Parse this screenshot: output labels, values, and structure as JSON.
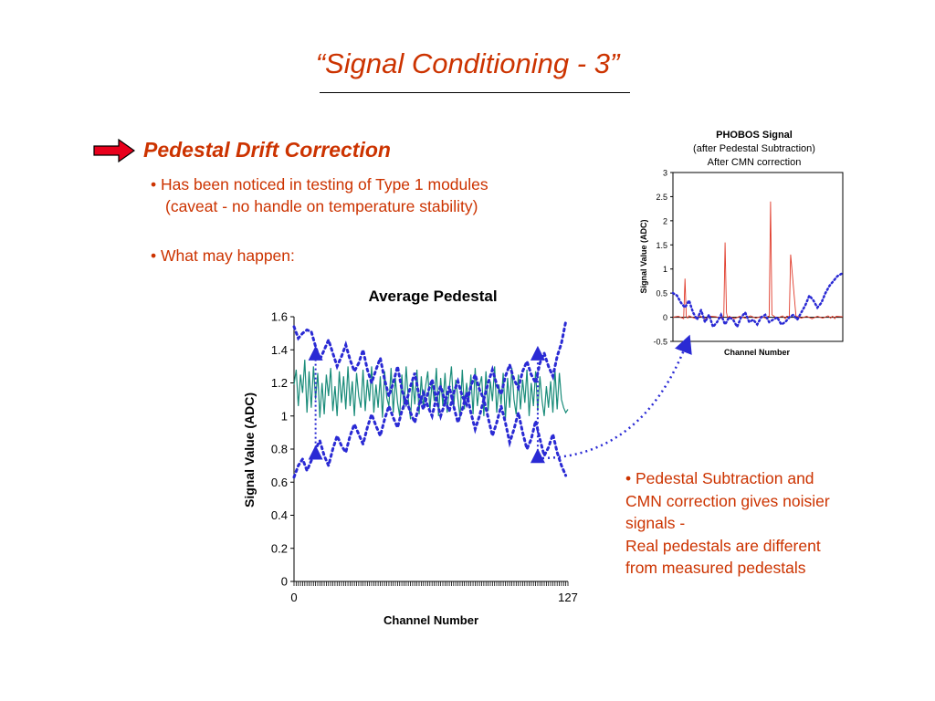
{
  "slide": {
    "title": "“Signal Conditioning - 3”",
    "heading": "Pedestal Drift Correction",
    "bullet1_line1": "• Has been noticed in testing of Type 1 modules",
    "bullet1_line2": "(caveat - no handle on temperature stability)",
    "bullet2": "• What may happen:",
    "note_line1": "• Pedestal Subtraction and",
    "note_line2": "CMN correction gives noisier",
    "note_line3": "signals -",
    "note_line4": "Real pedestals are different",
    "note_line5": "from measured pedestals",
    "colors": {
      "accent": "#cc3300",
      "arrow_fill": "#e8001c",
      "arrow_link": "#2a2ad4"
    },
    "icons": {
      "pointer": "red-arrow-icon"
    }
  },
  "chart_data": [
    {
      "type": "line",
      "title": "Average Pedestal",
      "xlabel": "Channel Number",
      "ylabel": "Signal Value (ADC)",
      "xlim": [
        0,
        127
      ],
      "ylim": [
        0,
        1.6
      ],
      "yticks": [
        "0",
        "0.2",
        "0.4",
        "0.6",
        "0.8",
        "1",
        "1.2",
        "1.4",
        "1.6"
      ],
      "xticks": [
        "0",
        "127"
      ],
      "grid": false,
      "legend": "none",
      "series": [
        {
          "style": "solid",
          "color": "#1a8c7a",
          "x": [
            0,
            1,
            2,
            3,
            4,
            5,
            6,
            7,
            8,
            9,
            10,
            11,
            12,
            13,
            14,
            15,
            16,
            17,
            18,
            19,
            20,
            21,
            22,
            23,
            24,
            25,
            26,
            27,
            28,
            29,
            30,
            31,
            32,
            33,
            34,
            35,
            36,
            37,
            38,
            39,
            40,
            41,
            42,
            43,
            44,
            45,
            46,
            47,
            48,
            49,
            50,
            51,
            52,
            53,
            54,
            55,
            56,
            57,
            58,
            59,
            60,
            61,
            62,
            63,
            64,
            65,
            66,
            67,
            68,
            69,
            70,
            71,
            72,
            73,
            74,
            75,
            76,
            77,
            78,
            79,
            80,
            81,
            82,
            83,
            84,
            85,
            86,
            87,
            88,
            89,
            90,
            91,
            92,
            93,
            94,
            95,
            96,
            97,
            98,
            99,
            100,
            101,
            102,
            103,
            104,
            105,
            106,
            107,
            108,
            109,
            110,
            111,
            112,
            113,
            114,
            115,
            116,
            117,
            118,
            119,
            120,
            121,
            122,
            123,
            124,
            125,
            126,
            127
          ],
          "y": [
            1.19,
            1.28,
            1.06,
            1.25,
            1.14,
            1.34,
            1.02,
            1.27,
            1.05,
            1.3,
            1.1,
            1.26,
            0.99,
            1.2,
            1.01,
            1.25,
            1.12,
            1.29,
            1.03,
            1.18,
            1.0,
            1.27,
            1.08,
            1.24,
            1.04,
            1.3,
            1.06,
            1.21,
            1.0,
            1.26,
            1.12,
            1.05,
            1.28,
            1.03,
            1.22,
            1.09,
            1.3,
            1.02,
            1.19,
            1.05,
            1.24,
            0.99,
            1.27,
            1.11,
            1.06,
            1.29,
            1.02,
            1.23,
            1.08,
            1.0,
            1.25,
            1.04,
            1.3,
            1.1,
            0.98,
            1.22,
            1.07,
            1.28,
            1.01,
            1.24,
            1.05,
            1.18,
            1.27,
            1.03,
            1.21,
            1.09,
            1.29,
            1.0,
            1.23,
            1.06,
            1.26,
            1.02,
            1.17,
            1.3,
            1.05,
            1.22,
            1.1,
            0.99,
            1.28,
            1.04,
            1.2,
            1.08,
            1.25,
            1.01,
            1.29,
            1.06,
            1.18,
            1.24,
            1.0,
            1.27,
            1.03,
            1.21,
            1.09,
            1.3,
            1.02,
            1.19,
            1.07,
            1.26,
            0.98,
            1.23,
            1.05,
            1.29,
            1.1,
            1.01,
            1.25,
            1.04,
            1.22,
            1.08,
            1.28,
            1.0,
            1.2,
            1.06,
            1.27,
            1.03,
            1.24,
            1.09,
            1.0,
            1.18,
            1.05,
            1.21,
            1.02,
            1.28,
            1.04,
            1.26,
            1.1,
            1.05,
            1.02,
            1.04
          ]
        },
        {
          "style": "dotted",
          "color": "#2a2ad4",
          "x": [
            0,
            2,
            4,
            6,
            8,
            10,
            12,
            14,
            16,
            18,
            20,
            22,
            24,
            26,
            28,
            30,
            32,
            34,
            36,
            38,
            40,
            42,
            44,
            46,
            48,
            50,
            52,
            54,
            56,
            58,
            60,
            62,
            64,
            66,
            68,
            70,
            72,
            74,
            76,
            78,
            80,
            82,
            84,
            86,
            88,
            90,
            92,
            94,
            96,
            98,
            100,
            102,
            104,
            106,
            108,
            110,
            112,
            114,
            116,
            118,
            120,
            122,
            124,
            126
          ],
          "y": [
            1.54,
            1.47,
            1.5,
            1.52,
            1.51,
            1.42,
            1.34,
            1.4,
            1.46,
            1.38,
            1.3,
            1.36,
            1.43,
            1.34,
            1.27,
            1.32,
            1.4,
            1.28,
            1.2,
            1.28,
            1.35,
            1.22,
            1.12,
            1.2,
            1.3,
            1.16,
            1.08,
            1.18,
            1.26,
            1.12,
            1.04,
            1.14,
            1.22,
            1.1,
            1.0,
            1.08,
            1.18,
            1.06,
            0.96,
            1.04,
            1.14,
            1.02,
            0.92,
            1.0,
            1.1,
            0.99,
            0.88,
            0.96,
            1.06,
            0.96,
            0.84,
            0.92,
            1.02,
            0.9,
            0.8,
            0.86,
            0.97,
            0.86,
            0.76,
            0.81,
            0.89,
            0.78,
            0.7,
            0.64
          ]
        },
        {
          "style": "dotted",
          "color": "#2a2ad4",
          "x": [
            0,
            2,
            4,
            6,
            8,
            10,
            12,
            14,
            16,
            18,
            20,
            22,
            24,
            26,
            28,
            30,
            32,
            34,
            36,
            38,
            40,
            42,
            44,
            46,
            48,
            50,
            52,
            54,
            56,
            58,
            60,
            62,
            64,
            66,
            68,
            70,
            72,
            74,
            76,
            78,
            80,
            82,
            84,
            86,
            88,
            90,
            92,
            94,
            96,
            98,
            100,
            102,
            104,
            106,
            108,
            110,
            112,
            114,
            116,
            118,
            120,
            122,
            124,
            126
          ],
          "y": [
            0.63,
            0.7,
            0.74,
            0.67,
            0.73,
            0.8,
            0.85,
            0.76,
            0.7,
            0.8,
            0.88,
            0.82,
            0.78,
            0.88,
            0.95,
            0.89,
            0.83,
            0.93,
            1.01,
            0.94,
            0.88,
            0.98,
            1.06,
            0.99,
            0.93,
            1.03,
            1.1,
            1.02,
            0.96,
            1.07,
            1.14,
            1.06,
            1.0,
            1.11,
            1.18,
            1.09,
            1.03,
            1.14,
            1.21,
            1.12,
            1.07,
            1.18,
            1.25,
            1.16,
            1.1,
            1.2,
            1.28,
            1.19,
            1.13,
            1.24,
            1.31,
            1.22,
            1.17,
            1.27,
            1.33,
            1.25,
            1.2,
            1.32,
            1.38,
            1.3,
            1.24,
            1.36,
            1.44,
            1.57
          ]
        }
      ],
      "annotations": [
        {
          "type": "double-arrow",
          "x": 10,
          "y_from": 0.78,
          "y_to": 1.38
        },
        {
          "type": "double-arrow",
          "x": 113,
          "y_from": 0.76,
          "y_to": 1.38
        }
      ]
    },
    {
      "type": "line",
      "title": "PHOBOS Signal",
      "subtitle": [
        "(after Pedestal Subtraction)",
        "After CMN correction"
      ],
      "xlabel": "Channel Number",
      "ylabel": "Signal Value (ADC)",
      "xlim": [
        0,
        127
      ],
      "ylim": [
        -0.5,
        3
      ],
      "yticks": [
        "-0.5",
        "0",
        "0.5",
        "1",
        "1.5",
        "2",
        "2.5",
        "3"
      ],
      "grid": false,
      "legend": "none",
      "series": [
        {
          "style": "solid",
          "color": "#e03a2a",
          "x": [
            0,
            4,
            8,
            9,
            10,
            11,
            12,
            16,
            20,
            24,
            28,
            32,
            36,
            38,
            39,
            40,
            41,
            42,
            46,
            50,
            54,
            58,
            62,
            66,
            70,
            71,
            72,
            73,
            74,
            78,
            82,
            84,
            85,
            86,
            87,
            88,
            92,
            96,
            100,
            104,
            108,
            112,
            116,
            118,
            119,
            120,
            121,
            122,
            126,
            127
          ],
          "y": [
            0,
            0.02,
            -0.03,
            0.8,
            0.02,
            -0.02,
            0.03,
            -0.02,
            0.03,
            -0.03,
            0.02,
            0.01,
            -0.02,
            0.03,
            1.55,
            0.1,
            -0.02,
            0.02,
            -0.03,
            0.02,
            -0.02,
            0.03,
            -0.02,
            0.02,
            -0.03,
            0.02,
            0.02,
            2.4,
            0.05,
            -0.02,
            0.03,
            -0.03,
            0.02,
            0.02,
            -0.02,
            1.3,
            0.03,
            -0.02,
            0.02,
            -0.03,
            0.02,
            -0.02,
            0.03,
            -0.02,
            0.02,
            0.01,
            -0.03,
            0.02,
            0.01,
            0.01
          ]
        },
        {
          "style": "dotted",
          "color": "#2a2ad4",
          "x": [
            0,
            3,
            6,
            9,
            12,
            15,
            18,
            21,
            24,
            27,
            30,
            33,
            36,
            39,
            42,
            45,
            48,
            51,
            54,
            57,
            60,
            63,
            66,
            69,
            72,
            75,
            78,
            81,
            84,
            87,
            90,
            93,
            96,
            99,
            102,
            105,
            108,
            111,
            114,
            117,
            120,
            123,
            126
          ],
          "y": [
            0.5,
            0.45,
            0.3,
            0.2,
            0.35,
            0.1,
            -0.05,
            0.15,
            -0.1,
            0.05,
            -0.2,
            -0.1,
            0.05,
            -0.15,
            0.0,
            -0.05,
            -0.2,
            0.0,
            0.1,
            -0.1,
            -0.05,
            -0.15,
            0.0,
            0.05,
            -0.1,
            -0.05,
            0.0,
            -0.15,
            -0.1,
            0.0,
            0.05,
            -0.05,
            0.1,
            0.25,
            0.45,
            0.35,
            0.2,
            0.3,
            0.5,
            0.65,
            0.75,
            0.85,
            0.9
          ]
        }
      ]
    }
  ]
}
